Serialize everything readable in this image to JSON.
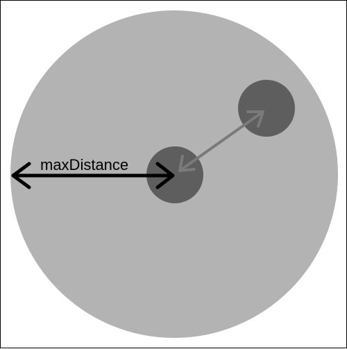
{
  "diagram": {
    "label_max_distance": "maxDistance",
    "colors": {
      "outer_circle": "#b3b3b3",
      "inner_circles": "#5e5e5e",
      "arrow_black": "#000000",
      "arrow_gray": "#7a7a7a",
      "frame_border": "#000000",
      "background": "#ffffff"
    }
  }
}
